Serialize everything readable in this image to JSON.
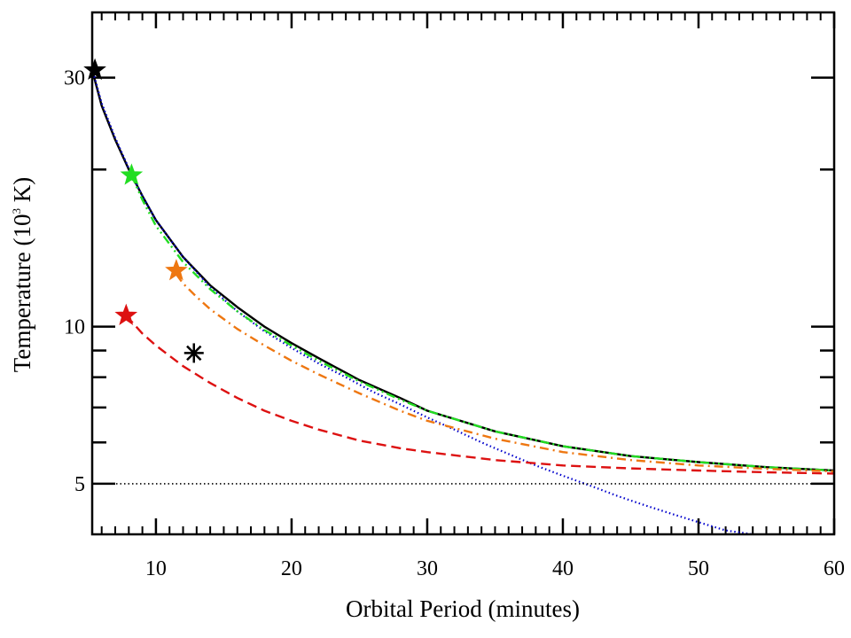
{
  "chart_data": {
    "type": "line",
    "title": "",
    "xlabel": "Orbital Period (minutes)",
    "ylabel_prefix": "Temperature (10",
    "ylabel_sup": "3",
    "ylabel_suffix": " K)",
    "xlim": [
      5.3,
      60
    ],
    "ylim": [
      4.0,
      40.0
    ],
    "yscale": "log",
    "xticks": [
      10,
      20,
      30,
      40,
      50,
      60
    ],
    "yticks": [
      5,
      10,
      30
    ],
    "xminor_step": 1,
    "yminor_ticks": [
      6,
      7,
      8,
      9,
      20
    ],
    "legend": "none",
    "grid": false,
    "series": [
      {
        "key": "black-solid",
        "color": "#000000",
        "dash": "solid",
        "x": [
          5.3,
          6,
          7,
          8,
          9,
          10,
          12,
          14,
          16,
          18,
          20,
          22,
          25,
          28,
          30,
          35,
          40,
          45,
          50,
          55,
          60
        ],
        "y": [
          31.0,
          26.5,
          22.8,
          20.0,
          17.8,
          16.0,
          13.6,
          12.0,
          10.9,
          10.0,
          9.3,
          8.7,
          7.9,
          7.3,
          6.9,
          6.3,
          5.9,
          5.65,
          5.5,
          5.38,
          5.3
        ]
      },
      {
        "key": "blue-dotted",
        "color": "#0000cc",
        "dash": "dotted",
        "x": [
          5.3,
          6,
          7,
          8,
          9,
          10,
          12,
          14,
          16,
          18,
          20,
          22,
          24,
          26,
          28,
          30,
          32,
          34,
          36,
          38,
          40,
          42,
          44,
          46,
          48,
          50,
          52,
          54
        ],
        "y": [
          31.2,
          26.8,
          23.0,
          20.1,
          17.8,
          16.0,
          13.6,
          11.9,
          10.7,
          9.8,
          9.1,
          8.5,
          8.0,
          7.5,
          7.1,
          6.7,
          6.35,
          6.0,
          5.7,
          5.42,
          5.18,
          4.96,
          4.74,
          4.55,
          4.38,
          4.22,
          4.07,
          4.0
        ]
      },
      {
        "key": "green-dash-dot-dot",
        "color": "#22dd22",
        "dash": "dashdotdot",
        "x": [
          8.2,
          9,
          10,
          12,
          14,
          16,
          18,
          20,
          22,
          25,
          28,
          30,
          35,
          40,
          45,
          50,
          55,
          60
        ],
        "y": [
          19.5,
          17.5,
          15.6,
          13.3,
          11.8,
          10.7,
          9.85,
          9.2,
          8.6,
          7.85,
          7.25,
          6.9,
          6.3,
          5.9,
          5.65,
          5.5,
          5.38,
          5.3
        ]
      },
      {
        "key": "orange-dash-dot",
        "color": "#ee7711",
        "dash": "dashdot",
        "x": [
          11.5,
          12,
          13,
          14,
          16,
          18,
          20,
          22,
          25,
          28,
          30,
          35,
          40,
          45,
          50,
          55,
          60
        ],
        "y": [
          12.6,
          12.1,
          11.4,
          10.8,
          9.9,
          9.2,
          8.6,
          8.1,
          7.45,
          6.9,
          6.6,
          6.1,
          5.75,
          5.55,
          5.42,
          5.34,
          5.28
        ]
      },
      {
        "key": "red-dashed",
        "color": "#dd1111",
        "dash": "dashed",
        "x": [
          7.8,
          9,
          10,
          12,
          14,
          16,
          18,
          20,
          22,
          25,
          28,
          30,
          35,
          40,
          45,
          50,
          55,
          60
        ],
        "y": [
          10.5,
          9.7,
          9.2,
          8.4,
          7.8,
          7.3,
          6.9,
          6.6,
          6.35,
          6.05,
          5.85,
          5.75,
          5.55,
          5.42,
          5.35,
          5.3,
          5.26,
          5.23
        ]
      },
      {
        "key": "black-dotted-5k",
        "color": "#000000",
        "dash": "finedot",
        "x": [
          5.3,
          60
        ],
        "y": [
          5.0,
          5.0
        ]
      }
    ],
    "markers": [
      {
        "key": "black-star-start",
        "shape": "star",
        "color": "#000000",
        "x": 5.5,
        "y": 31.0
      },
      {
        "key": "green-star",
        "shape": "star",
        "color": "#22dd22",
        "x": 8.2,
        "y": 19.5
      },
      {
        "key": "orange-star",
        "shape": "star",
        "color": "#ee7711",
        "x": 11.5,
        "y": 12.8
      },
      {
        "key": "red-star",
        "shape": "star",
        "color": "#dd1111",
        "x": 7.8,
        "y": 10.5
      },
      {
        "key": "black-asterisk",
        "shape": "asterisk",
        "color": "#000000",
        "x": 12.8,
        "y": 8.9
      }
    ]
  }
}
